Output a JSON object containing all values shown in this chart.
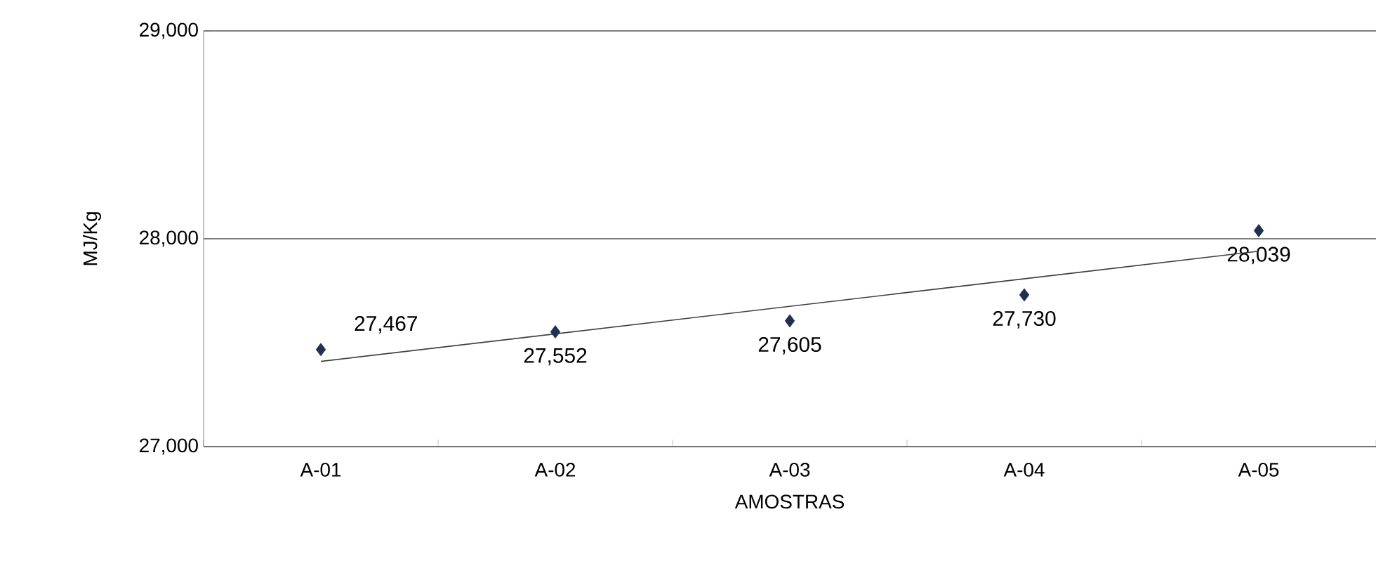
{
  "chart_data": {
    "type": "scatter",
    "xlabel": "AMOSTRAS",
    "ylabel": "MJ/Kg",
    "categories": [
      "A-01",
      "A-02",
      "A-03",
      "A-04",
      "A-05"
    ],
    "series": [
      {
        "color": "#1f3050",
        "marker": "diamond",
        "values": [
          27467,
          27552,
          27605,
          27730,
          28039
        ],
        "value_labels": [
          "27,467",
          "27,552",
          "27,605",
          "27,730",
          "28,039"
        ]
      },
      {
        "type": "line",
        "x": [
          "A-01",
          "A-05"
        ],
        "color": "#404040",
        "values": [
          27410,
          27940
        ]
      }
    ],
    "ylim": [
      27000,
      29000
    ],
    "yticks": [
      {
        "value": 27000,
        "label": "27,000"
      },
      {
        "value": 28000,
        "label": "28,000"
      },
      {
        "value": 29000,
        "label": "29,000"
      }
    ],
    "grid": "y",
    "line_style": "solid"
  }
}
